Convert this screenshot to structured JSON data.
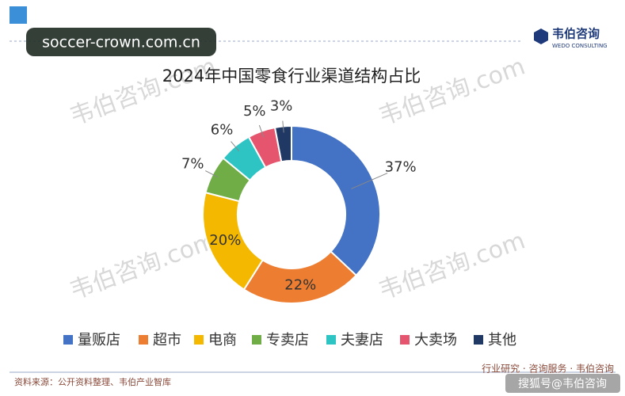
{
  "chart_data": {
    "type": "donut",
    "title": "2024年中国零食行业渠道结构占比",
    "categories": [
      "量贩店",
      "超市",
      "电商",
      "专卖店",
      "夫妻店",
      "大卖场",
      "其他"
    ],
    "values": [
      37,
      22,
      20,
      7,
      6,
      5,
      3
    ],
    "value_labels": [
      "37%",
      "22%",
      "20%",
      "7%",
      "6%",
      "5%",
      "3%"
    ],
    "colors": [
      "#4472c4",
      "#ed7d31",
      "#f5b800",
      "#70ad47",
      "#2ec4c4",
      "#e5566e",
      "#1f3864"
    ],
    "legend": "bottom"
  },
  "page": {
    "site_badge": "soccer-crown.com.cn",
    "brand": "韦伯咨询",
    "brand_en": "WEDO CONSULTING",
    "watermark": "韦伯咨询.com",
    "source": "资料来源：公开资料整理、韦伯产业智库",
    "footer_right": "行业研究 · 咨询服务 · 韦伯咨询",
    "platform": "搜狐号@韦伯咨询"
  }
}
